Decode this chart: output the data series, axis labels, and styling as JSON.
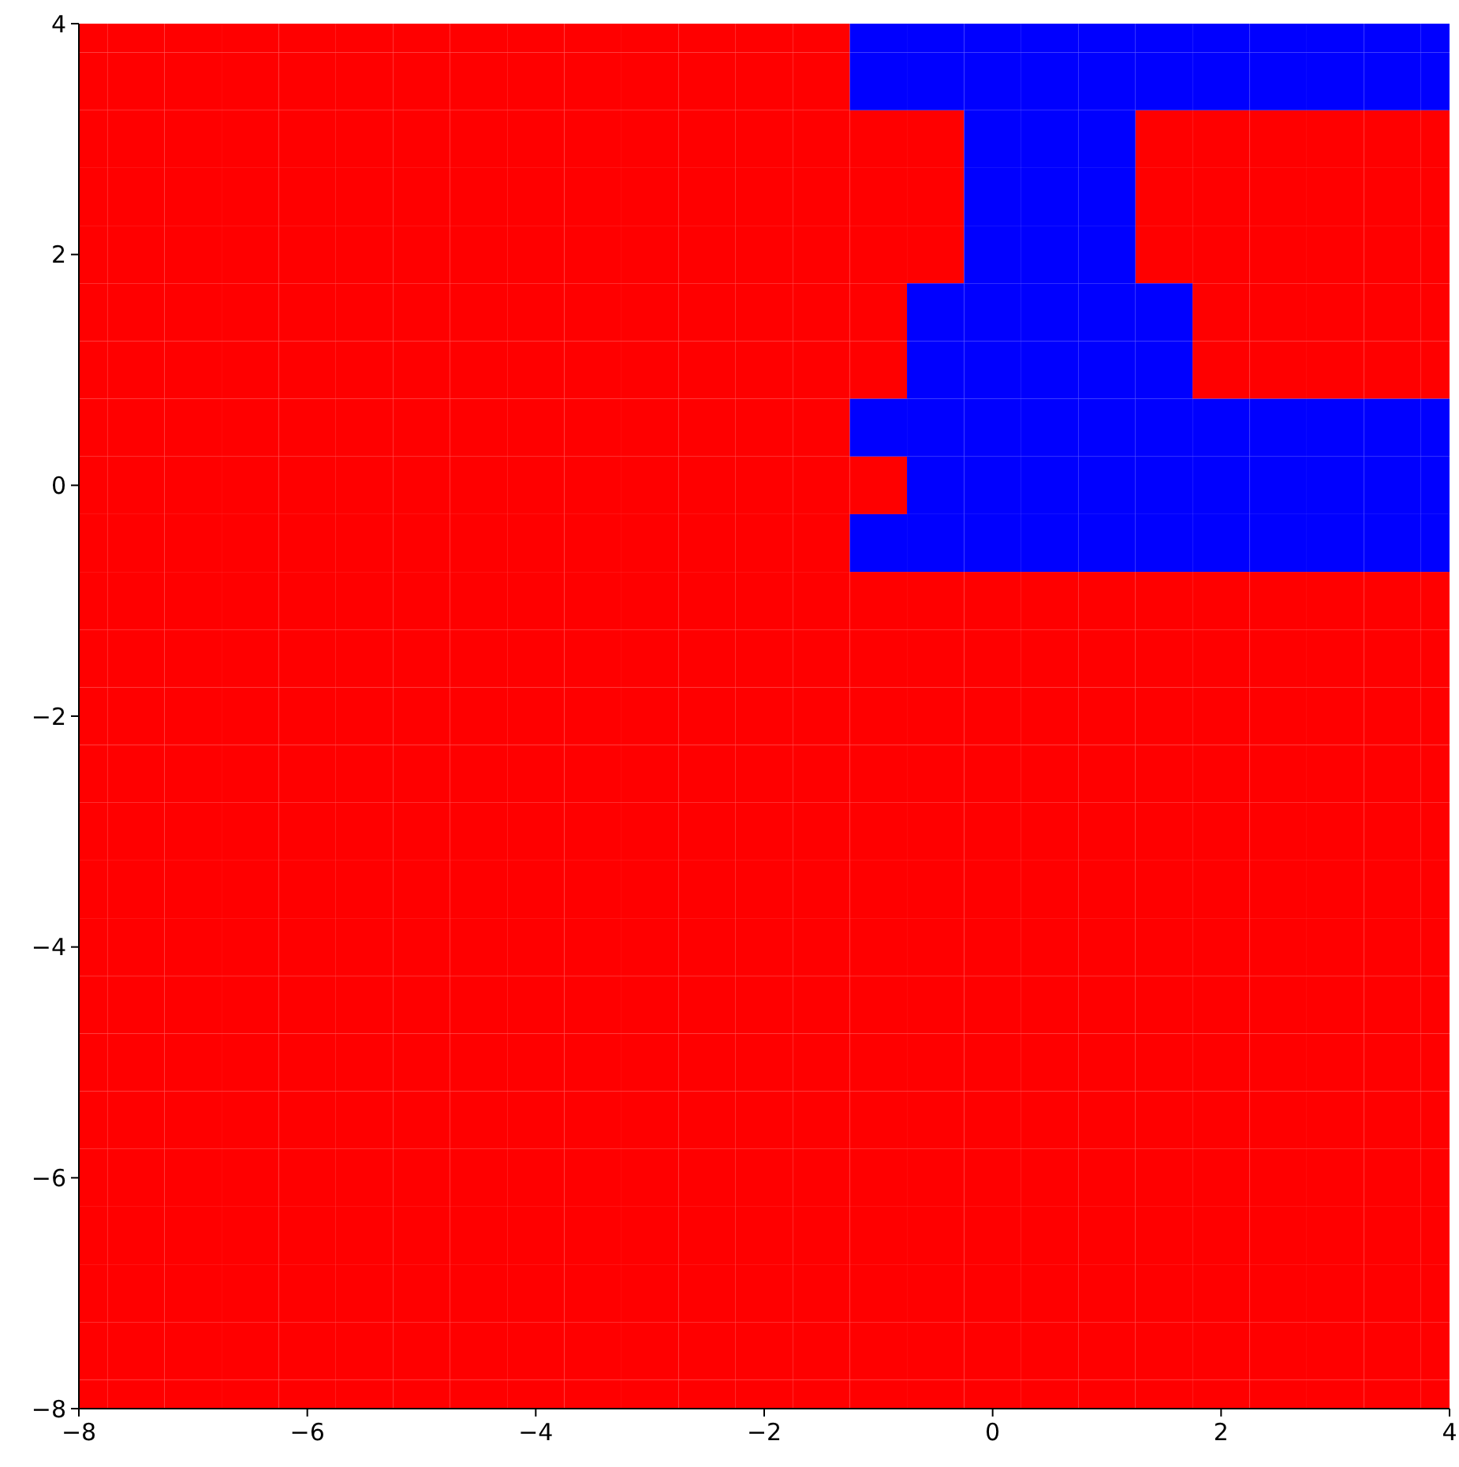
{
  "chart_data": {
    "type": "scatter",
    "marker": "square",
    "xlim": [
      -8,
      4
    ],
    "ylim": [
      -8,
      4
    ],
    "xticks": [
      -8,
      -6,
      -4,
      -2,
      0,
      2,
      4
    ],
    "yticks": [
      -8,
      -6,
      -4,
      -2,
      0,
      2,
      4
    ],
    "series": [
      {
        "color": "#ff0000",
        "x": [
          -8,
          -7.5,
          -7,
          -6.5,
          -6,
          -5.5,
          -5,
          -4.5,
          -4,
          -3.5,
          -3,
          -2.5,
          -2,
          -1.5,
          -8,
          -7.5,
          -7,
          -6.5,
          -6,
          -5.5,
          -5,
          -4.5,
          -4,
          -3.5,
          -3,
          -2.5,
          -2,
          -1.5,
          -8,
          -7.5,
          -7,
          -6.5,
          -6,
          -5.5,
          -5,
          -4.5,
          -4,
          -3.5,
          -3,
          -2.5,
          -2,
          -1.5,
          -1,
          -0.5,
          1.5,
          2,
          2.5,
          3,
          3.5,
          4,
          -8,
          -7.5,
          -7,
          -6.5,
          -6,
          -5.5,
          -5,
          -4.5,
          -4,
          -3.5,
          -3,
          -2.5,
          -2,
          -1.5,
          -1,
          -0.5,
          1.5,
          2,
          2.5,
          3,
          3.5,
          4,
          -8,
          -7.5,
          -7,
          -6.5,
          -6,
          -5.5,
          -5,
          -4.5,
          -4,
          -3.5,
          -3,
          -2.5,
          -2,
          -1.5,
          -1,
          -0.5,
          1.5,
          2,
          2.5,
          3,
          3.5,
          4,
          -8,
          -7.5,
          -7,
          -6.5,
          -6,
          -5.5,
          -5,
          -4.5,
          -4,
          -3.5,
          -3,
          -2.5,
          -2,
          -1.5,
          -1,
          2,
          2.5,
          3,
          3.5,
          4,
          -8,
          -7.5,
          -7,
          -6.5,
          -6,
          -5.5,
          -5,
          -4.5,
          -4,
          -3.5,
          -3,
          -2.5,
          -2,
          -1.5,
          -1,
          2,
          2.5,
          3,
          3.5,
          4,
          -8,
          -7.5,
          -7,
          -6.5,
          -6,
          -5.5,
          -5,
          -4.5,
          -4,
          -3.5,
          -3,
          -2.5,
          -2,
          -1.5,
          -8,
          -7.5,
          -7,
          -6.5,
          -6,
          -5.5,
          -5,
          -4.5,
          -4,
          -3.5,
          -3,
          -2.5,
          -2,
          -1.5,
          -1,
          -8,
          -7.5,
          -7,
          -6.5,
          -6,
          -5.5,
          -5,
          -4.5,
          -4,
          -3.5,
          -3,
          -2.5,
          -2,
          -1.5,
          -8,
          -7.5,
          -7,
          -6.5,
          -6,
          -5.5,
          -5,
          -4.5,
          -4,
          -3.5,
          -3,
          -2.5,
          -2,
          -1.5,
          -1,
          -0.5,
          0,
          0.5,
          1,
          1.5,
          2,
          2.5,
          3,
          3.5,
          4,
          -8,
          -7.5,
          -7,
          -6.5,
          -6,
          -5.5,
          -5,
          -4.5,
          -4,
          -3.5,
          -3,
          -2.5,
          -2,
          -1.5,
          -1,
          -0.5,
          0,
          0.5,
          1,
          1.5,
          2,
          2.5,
          3,
          3.5,
          4,
          -8,
          -7.5,
          -7,
          -6.5,
          -6,
          -5.5,
          -5,
          -4.5,
          -4,
          -3.5,
          -3,
          -2.5,
          -2,
          -1.5,
          -1,
          -0.5,
          0,
          0.5,
          1,
          1.5,
          2,
          2.5,
          3,
          3.5,
          4,
          -8,
          -7.5,
          -7,
          -6.5,
          -6,
          -5.5,
          -5,
          -4.5,
          -4,
          -3.5,
          -3,
          -2.5,
          -2,
          -1.5,
          -1,
          -0.5,
          0,
          0.5,
          1,
          1.5,
          2,
          2.5,
          3,
          3.5,
          4,
          -8,
          -7.5,
          -7,
          -6.5,
          -6,
          -5.5,
          -5,
          -4.5,
          -4,
          -3.5,
          -3,
          -2.5,
          -2,
          -1.5,
          -1,
          -0.5,
          0,
          0.5,
          1,
          1.5,
          2,
          2.5,
          3,
          3.5,
          4,
          -8,
          -7.5,
          -7,
          -6.5,
          -6,
          -5.5,
          -5,
          -4.5,
          -4,
          -3.5,
          -3,
          -2.5,
          -2,
          -1.5,
          -1,
          -0.5,
          0,
          0.5,
          1,
          1.5,
          2,
          2.5,
          3,
          3.5,
          4,
          -8,
          -7.5,
          -7,
          -6.5,
          -6,
          -5.5,
          -5,
          -4.5,
          -4,
          -3.5,
          -3,
          -2.5,
          -2,
          -1.5,
          -1,
          -0.5,
          0,
          0.5,
          1,
          1.5,
          2,
          2.5,
          3,
          3.5,
          4,
          -8,
          -7.5,
          -7,
          -6.5,
          -6,
          -5.5,
          -5,
          -4.5,
          -4,
          -3.5,
          -3,
          -2.5,
          -2,
          -1.5,
          -1,
          -0.5,
          0,
          0.5,
          1,
          1.5,
          2,
          2.5,
          3,
          3.5,
          4,
          -8,
          -7.5,
          -7,
          -6.5,
          -6,
          -5.5,
          -5,
          -4.5,
          -4,
          -3.5,
          -3,
          -2.5,
          -2,
          -1.5,
          -1,
          -0.5,
          0,
          0.5,
          1,
          1.5,
          2,
          2.5,
          3,
          3.5,
          4,
          -8,
          -7.5,
          -7,
          -6.5,
          -6,
          -5.5,
          -5,
          -4.5,
          -4,
          -3.5,
          -3,
          -2.5,
          -2,
          -1.5,
          -1,
          -0.5,
          0,
          0.5,
          1,
          1.5,
          2,
          2.5,
          3,
          3.5,
          4,
          -8,
          -7.5,
          -7,
          -6.5,
          -6,
          -5.5,
          -5,
          -4.5,
          -4,
          -3.5,
          -3,
          -2.5,
          -2,
          -1.5,
          -1,
          -0.5,
          0,
          0.5,
          1,
          1.5,
          2,
          2.5,
          3,
          3.5,
          4,
          -8,
          -7.5,
          -7,
          -6.5,
          -6,
          -5.5,
          -5,
          -4.5,
          -4,
          -3.5,
          -3,
          -2.5,
          -2,
          -1.5,
          -1,
          -0.5,
          0,
          0.5,
          1,
          1.5,
          2,
          2.5,
          3,
          3.5,
          4,
          -8,
          -7.5,
          -7,
          -6.5,
          -6,
          -5.5,
          -5,
          -4.5,
          -4,
          -3.5,
          -3,
          -2.5,
          -2,
          -1.5,
          -1,
          -0.5,
          0,
          0.5,
          1,
          1.5,
          2,
          2.5,
          3,
          3.5,
          4,
          -8,
          -7.5,
          -7,
          -6.5,
          -6,
          -5.5,
          -5,
          -4.5,
          -4,
          -3.5,
          -3,
          -2.5,
          -2,
          -1.5,
          -1,
          -0.5,
          0,
          0.5,
          1,
          1.5,
          2,
          2.5,
          3,
          3.5,
          4,
          -8,
          -7.5,
          -7,
          -6.5,
          -6,
          -5.5,
          -5,
          -4.5,
          -4,
          -3.5,
          -3,
          -2.5,
          -2,
          -1.5,
          -1,
          -0.5,
          0,
          0.5,
          1,
          1.5,
          2,
          2.5,
          3,
          3.5,
          4
        ],
        "values": [
          4,
          4,
          4,
          4,
          4,
          4,
          4,
          4,
          4,
          4,
          4,
          4,
          4,
          4,
          3.5,
          3.5,
          3.5,
          3.5,
          3.5,
          3.5,
          3.5,
          3.5,
          3.5,
          3.5,
          3.5,
          3.5,
          3.5,
          3.5,
          3,
          3,
          3,
          3,
          3,
          3,
          3,
          3,
          3,
          3,
          3,
          3,
          3,
          3,
          3,
          3,
          3,
          3,
          3,
          3,
          3,
          3,
          2.5,
          2.5,
          2.5,
          2.5,
          2.5,
          2.5,
          2.5,
          2.5,
          2.5,
          2.5,
          2.5,
          2.5,
          2.5,
          2.5,
          2.5,
          2.5,
          2.5,
          2.5,
          2.5,
          2.5,
          2.5,
          2.5,
          2,
          2,
          2,
          2,
          2,
          2,
          2,
          2,
          2,
          2,
          2,
          2,
          2,
          2,
          2,
          2,
          2,
          2,
          2,
          2,
          2,
          2,
          1.5,
          1.5,
          1.5,
          1.5,
          1.5,
          1.5,
          1.5,
          1.5,
          1.5,
          1.5,
          1.5,
          1.5,
          1.5,
          1.5,
          1.5,
          1.5,
          1.5,
          1.5,
          1.5,
          1.5,
          1,
          1,
          1,
          1,
          1,
          1,
          1,
          1,
          1,
          1,
          1,
          1,
          1,
          1,
          1,
          1,
          1,
          1,
          1,
          1,
          0.5,
          0.5,
          0.5,
          0.5,
          0.5,
          0.5,
          0.5,
          0.5,
          0.5,
          0.5,
          0.5,
          0.5,
          0.5,
          0.5,
          0,
          0,
          0,
          0,
          0,
          0,
          0,
          0,
          0,
          0,
          0,
          0,
          0,
          0,
          0,
          -0.5,
          -0.5,
          -0.5,
          -0.5,
          -0.5,
          -0.5,
          -0.5,
          -0.5,
          -0.5,
          -0.5,
          -0.5,
          -0.5,
          -0.5,
          -0.5,
          -1,
          -1,
          -1,
          -1,
          -1,
          -1,
          -1,
          -1,
          -1,
          -1,
          -1,
          -1,
          -1,
          -1,
          -1,
          -1,
          -1,
          -1,
          -1,
          -1,
          -1,
          -1,
          -1,
          -1,
          -1,
          -1.5,
          -1.5,
          -1.5,
          -1.5,
          -1.5,
          -1.5,
          -1.5,
          -1.5,
          -1.5,
          -1.5,
          -1.5,
          -1.5,
          -1.5,
          -1.5,
          -1.5,
          -1.5,
          -1.5,
          -1.5,
          -1.5,
          -1.5,
          -1.5,
          -1.5,
          -1.5,
          -1.5,
          -1.5,
          -2,
          -2,
          -2,
          -2,
          -2,
          -2,
          -2,
          -2,
          -2,
          -2,
          -2,
          -2,
          -2,
          -2,
          -2,
          -2,
          -2,
          -2,
          -2,
          -2,
          -2,
          -2,
          -2,
          -2,
          -2,
          -2.5,
          -2.5,
          -2.5,
          -2.5,
          -2.5,
          -2.5,
          -2.5,
          -2.5,
          -2.5,
          -2.5,
          -2.5,
          -2.5,
          -2.5,
          -2.5,
          -2.5,
          -2.5,
          -2.5,
          -2.5,
          -2.5,
          -2.5,
          -2.5,
          -2.5,
          -2.5,
          -2.5,
          -2.5,
          -3,
          -3,
          -3,
          -3,
          -3,
          -3,
          -3,
          -3,
          -3,
          -3,
          -3,
          -3,
          -3,
          -3,
          -3,
          -3,
          -3,
          -3,
          -3,
          -3,
          -3,
          -3,
          -3,
          -3,
          -3,
          -3.5,
          -3.5,
          -3.5,
          -3.5,
          -3.5,
          -3.5,
          -3.5,
          -3.5,
          -3.5,
          -3.5,
          -3.5,
          -3.5,
          -3.5,
          -3.5,
          -3.5,
          -3.5,
          -3.5,
          -3.5,
          -3.5,
          -3.5,
          -3.5,
          -3.5,
          -3.5,
          -3.5,
          -3.5,
          -4,
          -4,
          -4,
          -4,
          -4,
          -4,
          -4,
          -4,
          -4,
          -4,
          -4,
          -4,
          -4,
          -4,
          -4,
          -4,
          -4,
          -4,
          -4,
          -4,
          -4,
          -4,
          -4,
          -4,
          -4,
          -4.5,
          -4.5,
          -4.5,
          -4.5,
          -4.5,
          -4.5,
          -4.5,
          -4.5,
          -4.5,
          -4.5,
          -4.5,
          -4.5,
          -4.5,
          -4.5,
          -4.5,
          -4.5,
          -4.5,
          -4.5,
          -4.5,
          -4.5,
          -4.5,
          -4.5,
          -4.5,
          -4.5,
          -4.5,
          -5,
          -5,
          -5,
          -5,
          -5,
          -5,
          -5,
          -5,
          -5,
          -5,
          -5,
          -5,
          -5,
          -5,
          -5,
          -5,
          -5,
          -5,
          -5,
          -5,
          -5,
          -5,
          -5,
          -5,
          -5,
          -5.5,
          -5.5,
          -5.5,
          -5.5,
          -5.5,
          -5.5,
          -5.5,
          -5.5,
          -5.5,
          -5.5,
          -5.5,
          -5.5,
          -5.5,
          -5.5,
          -5.5,
          -5.5,
          -5.5,
          -5.5,
          -5.5,
          -5.5,
          -5.5,
          -5.5,
          -5.5,
          -5.5,
          -5.5,
          -6,
          -6,
          -6,
          -6,
          -6,
          -6,
          -6,
          -6,
          -6,
          -6,
          -6,
          -6,
          -6,
          -6,
          -6,
          -6,
          -6,
          -6,
          -6,
          -6,
          -6,
          -6,
          -6,
          -6,
          -6,
          -6.5,
          -6.5,
          -6.5,
          -6.5,
          -6.5,
          -6.5,
          -6.5,
          -6.5,
          -6.5,
          -6.5,
          -6.5,
          -6.5,
          -6.5,
          -6.5,
          -6.5,
          -6.5,
          -6.5,
          -6.5,
          -6.5,
          -6.5,
          -6.5,
          -6.5,
          -6.5,
          -6.5,
          -6.5,
          -7,
          -7,
          -7,
          -7,
          -7,
          -7,
          -7,
          -7,
          -7,
          -7,
          -7,
          -7,
          -7,
          -7,
          -7,
          -7,
          -7,
          -7,
          -7,
          -7,
          -7,
          -7,
          -7,
          -7,
          -7,
          -7.5,
          -7.5,
          -7.5,
          -7.5,
          -7.5,
          -7.5,
          -7.5,
          -7.5,
          -7.5,
          -7.5,
          -7.5,
          -7.5,
          -7.5,
          -7.5,
          -7.5,
          -7.5,
          -7.5,
          -7.5,
          -7.5,
          -7.5,
          -7.5,
          -7.5,
          -7.5,
          -7.5,
          -7.5,
          -8,
          -8,
          -8,
          -8,
          -8,
          -8,
          -8,
          -8,
          -8,
          -8,
          -8,
          -8,
          -8,
          -8,
          -8,
          -8,
          -8,
          -8,
          -8,
          -8,
          -8,
          -8,
          -8,
          -8,
          -8
        ]
      },
      {
        "color": "#0000ff",
        "x": [
          -1,
          -0.5,
          0,
          0.5,
          1,
          1.5,
          2,
          2.5,
          3,
          3.5,
          4,
          -1,
          -0.5,
          0,
          0.5,
          1,
          1.5,
          2,
          2.5,
          3,
          3.5,
          4,
          0,
          0.5,
          1,
          0,
          0.5,
          1,
          0,
          0.5,
          1,
          -0.5,
          0,
          0.5,
          1,
          1.5,
          -0.5,
          0,
          0.5,
          1,
          1.5,
          -1,
          -0.5,
          0,
          0.5,
          1,
          1.5,
          2,
          2.5,
          3,
          3.5,
          4,
          -0.5,
          0,
          0.5,
          1,
          1.5,
          2,
          2.5,
          3,
          3.5,
          4,
          -1,
          -0.5,
          0,
          0.5,
          1,
          1.5,
          2,
          2.5,
          3,
          3.5,
          4
        ],
        "values": [
          4,
          4,
          4,
          4,
          4,
          4,
          4,
          4,
          4,
          4,
          4,
          3.5,
          3.5,
          3.5,
          3.5,
          3.5,
          3.5,
          3.5,
          3.5,
          3.5,
          3.5,
          3.5,
          3,
          3,
          3,
          2.5,
          2.5,
          2.5,
          2,
          2,
          2,
          1.5,
          1.5,
          1.5,
          1.5,
          1.5,
          1,
          1,
          1,
          1,
          1,
          0.5,
          0.5,
          0.5,
          0.5,
          0.5,
          0.5,
          0.5,
          0.5,
          0.5,
          0.5,
          0.5,
          0,
          0,
          0,
          0,
          0,
          0,
          0,
          0,
          0,
          0,
          -0.5,
          -0.5,
          -0.5,
          -0.5,
          -0.5,
          -0.5,
          -0.5,
          -0.5,
          -0.5,
          -0.5,
          -0.5
        ]
      }
    ]
  }
}
